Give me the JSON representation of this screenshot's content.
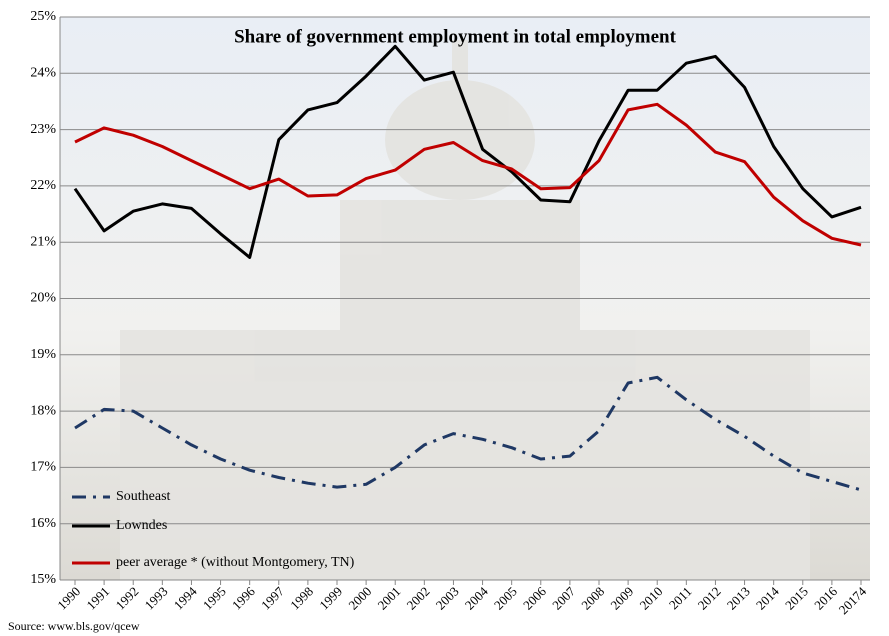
{
  "chart_data": {
    "type": "line",
    "title": "Share of government employment in total employment",
    "source": "Source: www.bls.gov/qcew",
    "categories": [
      "1990",
      "1991",
      "1992",
      "1993",
      "1994",
      "1995",
      "1996",
      "1997",
      "1998",
      "1999",
      "2000",
      "2001",
      "2002",
      "2003",
      "2004",
      "2005",
      "2006",
      "2007",
      "2008",
      "2009",
      "2010",
      "2011",
      "2012",
      "2013",
      "2014",
      "2015",
      "2016",
      "20174"
    ],
    "series": [
      {
        "name": "Southeast",
        "color": "#1f3864",
        "dash": "dashdot",
        "values": [
          17.7,
          18.03,
          18.0,
          17.7,
          17.4,
          17.15,
          16.95,
          16.82,
          16.72,
          16.65,
          16.7,
          17.0,
          17.4,
          17.6,
          17.5,
          17.35,
          17.15,
          17.2,
          17.65,
          18.5,
          18.6,
          18.2,
          17.85,
          17.55,
          17.2,
          16.9,
          16.75,
          16.6
        ]
      },
      {
        "name": "Lowndes",
        "color": "#000000",
        "dash": "solid",
        "values": [
          21.95,
          21.2,
          21.55,
          21.68,
          21.6,
          21.15,
          20.73,
          22.82,
          23.35,
          23.48,
          23.95,
          24.48,
          23.88,
          24.02,
          22.65,
          22.25,
          21.75,
          21.72,
          22.8,
          23.7,
          23.7,
          24.18,
          24.3,
          23.75,
          22.7,
          21.95,
          21.45,
          21.62
        ]
      },
      {
        "name": "peer average * (without Montgomery, TN)",
        "color": "#c00000",
        "dash": "solid",
        "values": [
          22.78,
          23.03,
          22.9,
          22.7,
          22.45,
          22.2,
          21.95,
          22.12,
          21.82,
          21.84,
          22.13,
          22.28,
          22.65,
          22.77,
          22.45,
          22.3,
          21.95,
          21.97,
          22.45,
          23.35,
          23.45,
          23.08,
          22.6,
          22.43,
          21.8,
          21.38,
          21.07,
          20.95
        ]
      }
    ],
    "ylim": [
      15,
      25
    ],
    "yticks": [
      {
        "value": 15,
        "label": "15%"
      },
      {
        "value": 16,
        "label": "16%"
      },
      {
        "value": 17,
        "label": "17%"
      },
      {
        "value": 18,
        "label": "18%"
      },
      {
        "value": 19,
        "label": "19%"
      },
      {
        "value": 20,
        "label": "20%"
      },
      {
        "value": 21,
        "label": "21%"
      },
      {
        "value": 22,
        "label": "22%"
      },
      {
        "value": 23,
        "label": "23%"
      },
      {
        "value": 24,
        "label": "24%"
      },
      {
        "value": 25,
        "label": "25%"
      }
    ],
    "grid": true,
    "legend": "lower left"
  }
}
